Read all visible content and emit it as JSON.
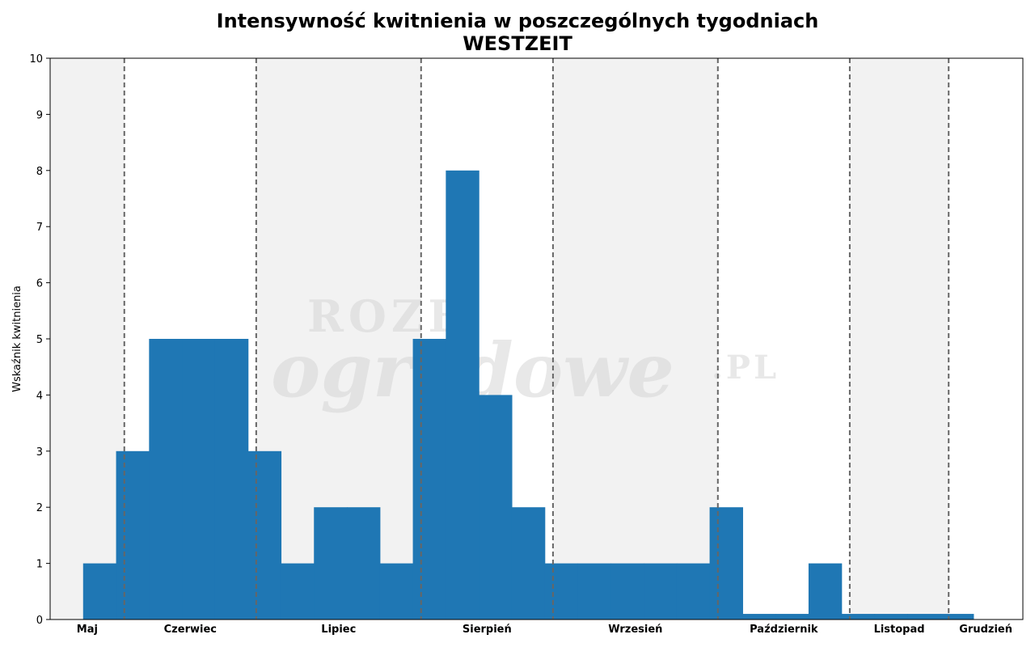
{
  "title_line1": "Intensywność kwitnienia w poszczególnych tygodniach",
  "title_line2": "WESTZEIT",
  "watermark": {
    "line1": "ROZE",
    "line2": "ogrodowe",
    "line3": ".PL"
  },
  "chart_data": {
    "type": "bar",
    "title": "Intensywność kwitnienia w poszczególnych tygodniach WESTZEIT",
    "xlabel": "",
    "ylabel": "Wskaźnik kwitnienia",
    "ylim": [
      0,
      10
    ],
    "yticks": [
      0,
      1,
      2,
      3,
      4,
      5,
      6,
      7,
      8,
      9,
      10
    ],
    "grid": false,
    "x_week_range": [
      18.5,
      48
    ],
    "months": [
      {
        "label": "Maj",
        "start": 18.5,
        "end": 20.75,
        "shaded": true
      },
      {
        "label": "Czerwiec",
        "start": 20.75,
        "end": 24.75,
        "shaded": false
      },
      {
        "label": "Lipiec",
        "start": 24.75,
        "end": 29.75,
        "shaded": true
      },
      {
        "label": "Sierpień",
        "start": 29.75,
        "end": 33.75,
        "shaded": false
      },
      {
        "label": "Wrzesień",
        "start": 33.75,
        "end": 38.75,
        "shaded": true
      },
      {
        "label": "Październik",
        "start": 38.75,
        "end": 42.75,
        "shaded": false
      },
      {
        "label": "Listopad",
        "start": 42.75,
        "end": 45.75,
        "shaded": true
      },
      {
        "label": "Grudzień",
        "start": 45.75,
        "end": 48,
        "shaded": false
      }
    ],
    "weeks": [
      20,
      21,
      22,
      23,
      24,
      25,
      26,
      27,
      28,
      29,
      30,
      31,
      32,
      33,
      34,
      35,
      36,
      37,
      38,
      39,
      40,
      41,
      42,
      43,
      44,
      45,
      46
    ],
    "values": [
      1,
      3,
      5,
      5,
      5,
      3,
      1,
      2,
      2,
      1,
      5,
      8,
      4,
      2,
      1,
      1,
      1,
      1,
      1,
      2,
      0.1,
      0.1,
      1,
      0.1,
      0.1,
      0.1,
      0.1
    ],
    "colors": {
      "bar": "#1f77b4",
      "shade": "#f2f2f2",
      "divider": "#666666"
    }
  }
}
